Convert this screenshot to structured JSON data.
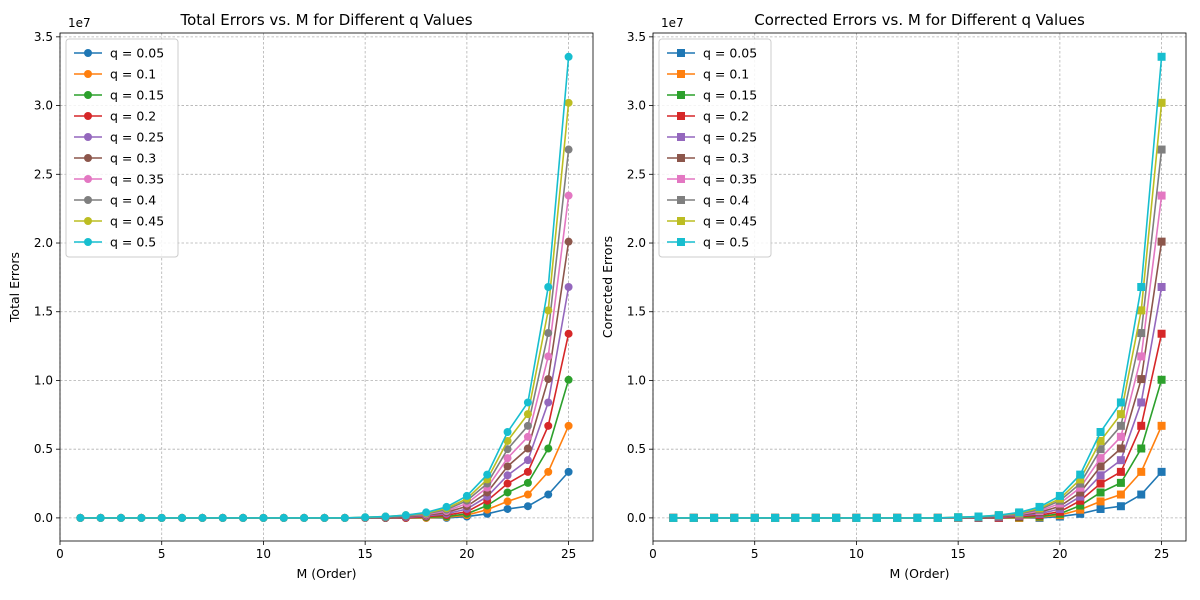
{
  "colors": [
    "#1f77b4",
    "#ff7f0e",
    "#2ca02c",
    "#d62728",
    "#9467bd",
    "#8c564b",
    "#e377c2",
    "#7f7f7f",
    "#bcbd22",
    "#17becf"
  ],
  "chart_data": [
    {
      "type": "line",
      "marker": "circle",
      "title": "Total Errors vs. M for Different q Values",
      "xlabel": "M (Order)",
      "ylabel": "Total Errors",
      "offset_text": "1e7",
      "xlim": [
        0,
        26.2
      ],
      "ylim": [
        -1680000,
        35280000
      ],
      "xticks": [
        0,
        5,
        10,
        15,
        20,
        25
      ],
      "xtick_labels": [
        "0",
        "5",
        "10",
        "15",
        "20",
        "25"
      ],
      "yticks": [
        0,
        5000000,
        10000000,
        15000000,
        20000000,
        25000000,
        30000000,
        35000000
      ],
      "ytick_labels": [
        "0.0",
        "0.5",
        "1.0",
        "1.5",
        "2.0",
        "2.5",
        "3.0",
        "3.5"
      ],
      "grid": true,
      "legend": "upper-left",
      "x": [
        1,
        2,
        3,
        4,
        5,
        6,
        7,
        8,
        9,
        10,
        11,
        12,
        13,
        14,
        15,
        16,
        17,
        18,
        19,
        20,
        21,
        22,
        23,
        24,
        25
      ],
      "series": [
        {
          "name": "q = 0.05",
          "values": [
            0,
            0,
            0,
            0,
            0,
            0,
            0,
            0,
            0,
            0,
            0,
            0,
            0,
            0,
            0,
            0,
            0,
            0,
            0,
            100000,
            300000,
            650000,
            850000,
            1700000,
            3350000
          ]
        },
        {
          "name": "q = 0.1",
          "values": [
            0,
            0,
            0,
            0,
            0,
            0,
            0,
            0,
            0,
            0,
            0,
            0,
            0,
            0,
            0,
            0,
            0,
            0,
            50000,
            200000,
            600000,
            1200000,
            1700000,
            3350000,
            6700000
          ]
        },
        {
          "name": "q = 0.15",
          "values": [
            0,
            0,
            0,
            0,
            0,
            0,
            0,
            0,
            0,
            0,
            0,
            0,
            0,
            0,
            0,
            0,
            0,
            50000,
            100000,
            300000,
            900000,
            1850000,
            2550000,
            5050000,
            10050000
          ]
        },
        {
          "name": "q = 0.2",
          "values": [
            0,
            0,
            0,
            0,
            0,
            0,
            0,
            0,
            0,
            0,
            0,
            0,
            0,
            0,
            0,
            0,
            0,
            100000,
            200000,
            450000,
            1250000,
            2500000,
            3350000,
            6700000,
            13400000
          ]
        },
        {
          "name": "q = 0.25",
          "values": [
            0,
            0,
            0,
            0,
            0,
            0,
            0,
            0,
            0,
            0,
            0,
            0,
            0,
            0,
            0,
            0,
            50000,
            150000,
            300000,
            650000,
            1550000,
            3100000,
            4200000,
            8400000,
            16800000
          ]
        },
        {
          "name": "q = 0.3",
          "values": [
            0,
            0,
            0,
            0,
            0,
            0,
            0,
            0,
            0,
            0,
            0,
            0,
            0,
            0,
            0,
            0,
            100000,
            200000,
            400000,
            850000,
            1850000,
            3750000,
            5050000,
            10100000,
            20100000
          ]
        },
        {
          "name": "q = 0.35",
          "values": [
            0,
            0,
            0,
            0,
            0,
            0,
            0,
            0,
            0,
            0,
            0,
            0,
            0,
            0,
            0,
            50000,
            150000,
            250000,
            500000,
            1050000,
            2200000,
            4350000,
            5900000,
            11750000,
            23450000
          ]
        },
        {
          "name": "q = 0.4",
          "values": [
            0,
            0,
            0,
            0,
            0,
            0,
            0,
            0,
            0,
            0,
            0,
            0,
            0,
            0,
            0,
            50000,
            150000,
            300000,
            600000,
            1250000,
            2500000,
            5000000,
            6700000,
            13450000,
            26800000
          ]
        },
        {
          "name": "q = 0.45",
          "values": [
            0,
            0,
            0,
            0,
            0,
            0,
            0,
            0,
            0,
            0,
            0,
            0,
            0,
            0,
            50000,
            100000,
            200000,
            350000,
            700000,
            1400000,
            2800000,
            5600000,
            7550000,
            15100000,
            30200000
          ]
        },
        {
          "name": "q = 0.5",
          "values": [
            0,
            0,
            0,
            0,
            0,
            0,
            0,
            0,
            0,
            0,
            0,
            0,
            0,
            0,
            50000,
            100000,
            200000,
            400000,
            800000,
            1600000,
            3150000,
            6250000,
            8400000,
            16800000,
            33550000
          ]
        }
      ]
    },
    {
      "type": "line",
      "marker": "square",
      "title": "Corrected Errors vs. M for Different q Values",
      "xlabel": "M (Order)",
      "ylabel": "Corrected Errors",
      "offset_text": "1e7",
      "xlim": [
        0,
        26.2
      ],
      "ylim": [
        -1680000,
        35280000
      ],
      "xticks": [
        0,
        5,
        10,
        15,
        20,
        25
      ],
      "xtick_labels": [
        "0",
        "5",
        "10",
        "15",
        "20",
        "25"
      ],
      "yticks": [
        0,
        5000000,
        10000000,
        15000000,
        20000000,
        25000000,
        30000000,
        35000000
      ],
      "ytick_labels": [
        "0.0",
        "0.5",
        "1.0",
        "1.5",
        "2.0",
        "2.5",
        "3.0",
        "3.5"
      ],
      "grid": true,
      "legend": "upper-left",
      "x": [
        1,
        2,
        3,
        4,
        5,
        6,
        7,
        8,
        9,
        10,
        11,
        12,
        13,
        14,
        15,
        16,
        17,
        18,
        19,
        20,
        21,
        22,
        23,
        24,
        25
      ],
      "series": [
        {
          "name": "q = 0.05",
          "values": [
            0,
            0,
            0,
            0,
            0,
            0,
            0,
            0,
            0,
            0,
            0,
            0,
            0,
            0,
            0,
            0,
            0,
            0,
            0,
            100000,
            300000,
            650000,
            850000,
            1700000,
            3350000
          ]
        },
        {
          "name": "q = 0.1",
          "values": [
            0,
            0,
            0,
            0,
            0,
            0,
            0,
            0,
            0,
            0,
            0,
            0,
            0,
            0,
            0,
            0,
            0,
            0,
            50000,
            200000,
            600000,
            1200000,
            1700000,
            3350000,
            6700000
          ]
        },
        {
          "name": "q = 0.15",
          "values": [
            0,
            0,
            0,
            0,
            0,
            0,
            0,
            0,
            0,
            0,
            0,
            0,
            0,
            0,
            0,
            0,
            0,
            50000,
            100000,
            300000,
            900000,
            1850000,
            2550000,
            5050000,
            10050000
          ]
        },
        {
          "name": "q = 0.2",
          "values": [
            0,
            0,
            0,
            0,
            0,
            0,
            0,
            0,
            0,
            0,
            0,
            0,
            0,
            0,
            0,
            0,
            0,
            100000,
            200000,
            450000,
            1250000,
            2500000,
            3350000,
            6700000,
            13400000
          ]
        },
        {
          "name": "q = 0.25",
          "values": [
            0,
            0,
            0,
            0,
            0,
            0,
            0,
            0,
            0,
            0,
            0,
            0,
            0,
            0,
            0,
            0,
            50000,
            150000,
            300000,
            650000,
            1550000,
            3100000,
            4200000,
            8400000,
            16800000
          ]
        },
        {
          "name": "q = 0.3",
          "values": [
            0,
            0,
            0,
            0,
            0,
            0,
            0,
            0,
            0,
            0,
            0,
            0,
            0,
            0,
            0,
            0,
            100000,
            200000,
            400000,
            850000,
            1850000,
            3750000,
            5050000,
            10100000,
            20100000
          ]
        },
        {
          "name": "q = 0.35",
          "values": [
            0,
            0,
            0,
            0,
            0,
            0,
            0,
            0,
            0,
            0,
            0,
            0,
            0,
            0,
            0,
            50000,
            150000,
            250000,
            500000,
            1050000,
            2200000,
            4350000,
            5900000,
            11750000,
            23450000
          ]
        },
        {
          "name": "q = 0.4",
          "values": [
            0,
            0,
            0,
            0,
            0,
            0,
            0,
            0,
            0,
            0,
            0,
            0,
            0,
            0,
            0,
            50000,
            150000,
            300000,
            600000,
            1250000,
            2500000,
            5000000,
            6700000,
            13450000,
            26800000
          ]
        },
        {
          "name": "q = 0.45",
          "values": [
            0,
            0,
            0,
            0,
            0,
            0,
            0,
            0,
            0,
            0,
            0,
            0,
            0,
            0,
            50000,
            100000,
            200000,
            350000,
            700000,
            1400000,
            2800000,
            5600000,
            7550000,
            15100000,
            30200000
          ]
        },
        {
          "name": "q = 0.5",
          "values": [
            0,
            0,
            0,
            0,
            0,
            0,
            0,
            0,
            0,
            0,
            0,
            0,
            0,
            0,
            50000,
            100000,
            200000,
            400000,
            800000,
            1600000,
            3150000,
            6250000,
            8400000,
            16800000,
            33550000
          ]
        }
      ]
    }
  ]
}
